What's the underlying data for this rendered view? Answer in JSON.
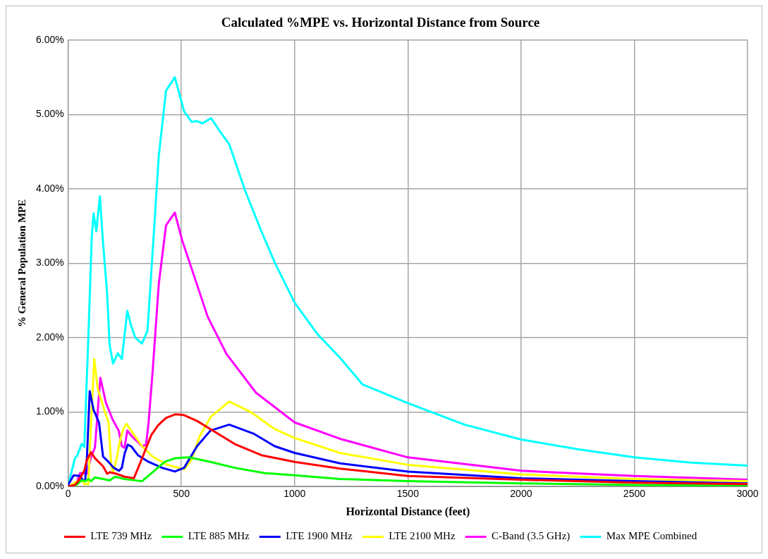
{
  "chart_data": {
    "type": "line",
    "title": "Calculated %MPE vs. Horizontal Distance from Source",
    "xlabel": "Horizontal Distance (feet)",
    "ylabel": "% General Population MPE",
    "xlim": [
      0,
      3000
    ],
    "xticks": [
      0,
      500,
      1000,
      1500,
      2000,
      2500,
      3000
    ],
    "ylim": [
      0,
      6
    ],
    "yticks": [
      {
        "value": 0,
        "label": "0.00%"
      },
      {
        "value": 1,
        "label": "1.00%"
      },
      {
        "value": 2,
        "label": "2.00%"
      },
      {
        "value": 3,
        "label": "3.00%"
      },
      {
        "value": 4,
        "label": "4.00%"
      },
      {
        "value": 5,
        "label": "5.00%"
      },
      {
        "value": 6,
        "label": "6.00%"
      }
    ],
    "grid": true,
    "legend": "bottom",
    "marker": "none",
    "line_style": "solid",
    "series": [
      {
        "name": "LTE 739 MHz",
        "color": "#ff0000",
        "x": [
          0,
          30,
          47,
          71,
          83,
          101,
          118,
          154,
          172,
          183,
          213,
          249,
          290,
          320,
          367,
          397,
          432,
          474,
          509,
          569,
          628,
          735,
          853,
          1000,
          1200,
          1500,
          2000,
          2500,
          3000
        ],
        "values": [
          0,
          0.02,
          0.08,
          0.21,
          0.36,
          0.46,
          0.38,
          0.27,
          0.17,
          0.19,
          0.17,
          0.13,
          0.11,
          0.33,
          0.69,
          0.82,
          0.92,
          0.97,
          0.96,
          0.88,
          0.77,
          0.57,
          0.42,
          0.33,
          0.24,
          0.14,
          0.09,
          0.05,
          0.03
        ]
      },
      {
        "name": "LTE 885 MHz",
        "color": "#00ff00",
        "x": [
          0,
          36,
          59,
          77,
          89,
          101,
          118,
          154,
          183,
          207,
          249,
          326,
          373,
          426,
          474,
          533,
          628,
          735,
          865,
          1000,
          1200,
          1500,
          2000,
          2500,
          3000
        ],
        "values": [
          0,
          0.02,
          0.08,
          0.07,
          0.1,
          0.07,
          0.12,
          0.1,
          0.08,
          0.13,
          0.1,
          0.07,
          0.19,
          0.33,
          0.38,
          0.39,
          0.33,
          0.25,
          0.18,
          0.15,
          0.1,
          0.07,
          0.04,
          0.02,
          0.01
        ]
      },
      {
        "name": "LTE 1900 MHz",
        "color": "#0000ff",
        "x": [
          0,
          24,
          53,
          65,
          75,
          83,
          95,
          112,
          136,
          154,
          178,
          201,
          225,
          237,
          249,
          263,
          278,
          308,
          355,
          415,
          471,
          512,
          569,
          628,
          711,
          818,
          912,
          1000,
          1200,
          1500,
          2000,
          2500,
          3000
        ],
        "values": [
          0.02,
          0.15,
          0.14,
          0.08,
          0.08,
          0.4,
          1.28,
          1.03,
          0.86,
          0.4,
          0.33,
          0.25,
          0.21,
          0.25,
          0.44,
          0.56,
          0.54,
          0.42,
          0.33,
          0.25,
          0.2,
          0.25,
          0.54,
          0.75,
          0.83,
          0.71,
          0.54,
          0.45,
          0.31,
          0.2,
          0.11,
          0.07,
          0.04
        ]
      },
      {
        "name": "LTE 2100 MHz",
        "color": "#ffff00",
        "x": [
          0,
          36,
          59,
          71,
          89,
          101,
          115,
          130,
          160,
          178,
          190,
          198,
          213,
          227,
          243,
          258,
          278,
          326,
          373,
          438,
          512,
          545,
          580,
          631,
          711,
          806,
          912,
          1000,
          1200,
          1500,
          2000,
          2500,
          3000
        ],
        "values": [
          0,
          0.06,
          0.1,
          0.03,
          0.03,
          0.86,
          1.71,
          1.32,
          1.02,
          0.86,
          0.29,
          0.19,
          0.36,
          0.59,
          0.77,
          0.84,
          0.75,
          0.54,
          0.4,
          0.29,
          0.23,
          0.36,
          0.67,
          0.94,
          1.14,
          1.0,
          0.77,
          0.65,
          0.45,
          0.29,
          0.16,
          0.1,
          0.07
        ]
      },
      {
        "name": "C-Band (3.5 GHz)",
        "color": "#ff00ff",
        "x": [
          0,
          36,
          53,
          83,
          101,
          118,
          142,
          166,
          196,
          223,
          237,
          249,
          261,
          282,
          326,
          344,
          355,
          373,
          400,
          432,
          471,
          503,
          557,
          616,
          699,
          829,
          1000,
          1200,
          1500,
          2000,
          2500,
          3000
        ],
        "values": [
          0,
          0.04,
          0.18,
          0.17,
          0.4,
          0.52,
          1.46,
          1.13,
          0.9,
          0.75,
          0.54,
          0.52,
          0.75,
          0.67,
          0.54,
          0.56,
          0.86,
          1.55,
          2.72,
          3.51,
          3.68,
          3.31,
          2.82,
          2.28,
          1.78,
          1.26,
          0.86,
          0.64,
          0.39,
          0.21,
          0.14,
          0.09
        ]
      },
      {
        "name": "Max MPE Combined",
        "color": "#00ffff",
        "x": [
          0,
          30,
          41,
          59,
          71,
          89,
          104,
          112,
          124,
          140,
          154,
          172,
          183,
          198,
          219,
          237,
          261,
          278,
          296,
          326,
          350,
          373,
          400,
          432,
          471,
          512,
          545,
          569,
          592,
          631,
          675,
          711,
          782,
          853,
          912,
          1000,
          1100,
          1200,
          1300,
          1500,
          1750,
          2000,
          2250,
          2500,
          2750,
          3000
        ],
        "values": [
          0.02,
          0.38,
          0.42,
          0.57,
          0.53,
          2.0,
          3.35,
          3.67,
          3.43,
          3.9,
          3.27,
          2.59,
          1.9,
          1.65,
          1.79,
          1.71,
          2.36,
          2.16,
          2.0,
          1.92,
          2.09,
          3.16,
          4.44,
          5.32,
          5.5,
          5.04,
          4.9,
          4.91,
          4.88,
          4.95,
          4.75,
          4.6,
          3.97,
          3.43,
          3.01,
          2.47,
          2.05,
          1.73,
          1.37,
          1.12,
          0.83,
          0.63,
          0.5,
          0.39,
          0.32,
          0.28
        ]
      }
    ]
  }
}
